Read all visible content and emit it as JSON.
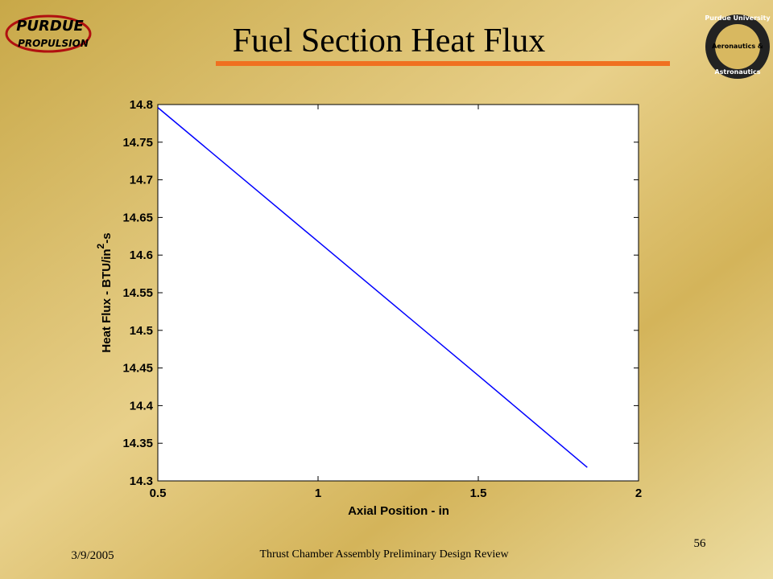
{
  "slide": {
    "title": "Fuel Section Heat Flux",
    "date": "3/9/2005",
    "footer": "Thrust Chamber Assembly Preliminary Design Review",
    "page_number": "56",
    "logo_left": [
      "PURDUE",
      "PROPULSION"
    ],
    "logo_right": [
      "Purdue University",
      "Aeronautics &",
      "Astronautics"
    ]
  },
  "chart_data": {
    "type": "line",
    "xlabel": "Axial Position - in",
    "ylabel": [
      "Heat Flux - BTU/in",
      "2",
      "-s"
    ],
    "x": [
      0.5,
      1,
      1.5,
      1.84
    ],
    "series": [
      {
        "name": "Heat Flux",
        "color": "#0000ff",
        "values": [
          14.796,
          14.618,
          14.44,
          14.318
        ]
      }
    ],
    "xlim": [
      0.5,
      2
    ],
    "xticks": [
      0.5,
      1,
      1.5,
      2
    ],
    "ylim": [
      14.3,
      14.8
    ],
    "yticks": [
      14.3,
      14.35,
      14.4,
      14.45,
      14.5,
      14.55,
      14.6,
      14.65,
      14.7,
      14.75,
      14.8
    ],
    "grid": false
  }
}
